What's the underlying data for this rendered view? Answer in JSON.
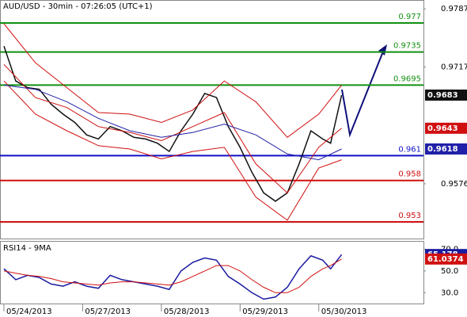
{
  "chart_data": [
    {
      "type": "line",
      "title": "AUD/USD - 30min - 07:26:05 (UTC+1)",
      "xlim": [
        -0.05,
        5.33
      ],
      "ylim": [
        0.9509,
        0.97977
      ],
      "yticks": [
        0.9787,
        0.9717,
        0.9576
      ],
      "levels": [
        {
          "value": 0.977,
          "color": "#129112"
        },
        {
          "value": 0.9735,
          "color": "#129112"
        },
        {
          "value": 0.9695,
          "color": "#129112"
        },
        {
          "value": 0.961,
          "color": "#1010c8"
        },
        {
          "value": 0.958,
          "color": "#d01010"
        },
        {
          "value": 0.953,
          "color": "#d01010"
        }
      ],
      "series": [
        {
          "color": "#111111",
          "x": [
            0,
            0.15,
            0.3,
            0.45,
            0.6,
            0.75,
            0.9,
            1.05,
            1.2,
            1.35,
            1.5,
            1.65,
            1.8,
            1.95,
            2.1,
            2.25,
            2.4,
            2.55,
            2.7,
            2.85,
            3.0,
            3.15,
            3.3,
            3.45,
            3.6,
            3.75,
            3.9,
            4.05,
            4.15,
            4.29
          ],
          "values": [
            0.9742,
            0.97,
            0.9692,
            0.969,
            0.9672,
            0.966,
            0.965,
            0.9635,
            0.963,
            0.9645,
            0.964,
            0.9632,
            0.963,
            0.9625,
            0.9615,
            0.964,
            0.966,
            0.9685,
            0.968,
            0.9645,
            0.962,
            0.959,
            0.9565,
            0.9555,
            0.9565,
            0.96,
            0.964,
            0.963,
            0.9625,
            0.9683
          ]
        },
        {
          "color": "#d01010",
          "x": [
            0,
            0.4,
            0.8,
            1.2,
            1.6,
            2.0,
            2.4,
            2.8,
            3.2,
            3.6,
            4.0,
            4.29
          ],
          "values": [
            0.9769,
            0.9722,
            0.9692,
            0.9662,
            0.966,
            0.965,
            0.9665,
            0.97,
            0.9675,
            0.9632,
            0.966,
            0.9695
          ]
        },
        {
          "color": "#d01010",
          "x": [
            0,
            0.4,
            0.8,
            1.2,
            1.6,
            2.0,
            2.4,
            2.8,
            3.2,
            3.6,
            4.0,
            4.29
          ],
          "values": [
            0.97,
            0.966,
            0.964,
            0.9622,
            0.9618,
            0.9606,
            0.9615,
            0.962,
            0.956,
            0.9532,
            0.9595,
            0.9605
          ]
        },
        {
          "color": "#d01010",
          "x": [
            0,
            0.4,
            0.8,
            1.2,
            1.6,
            2.0,
            2.4,
            2.8,
            3.2,
            3.6,
            4.0,
            4.29
          ],
          "values": [
            0.972,
            0.968,
            0.9668,
            0.9645,
            0.9638,
            0.9628,
            0.9645,
            0.9662,
            0.96,
            0.9565,
            0.962,
            0.9643
          ]
        },
        {
          "color": "#2020a8",
          "x": [
            0,
            0.4,
            0.8,
            1.2,
            1.6,
            2.0,
            2.4,
            2.8,
            3.2,
            3.6,
            4.0,
            4.29
          ],
          "values": [
            0.9695,
            0.969,
            0.9675,
            0.9655,
            0.964,
            0.9632,
            0.9638,
            0.9648,
            0.9635,
            0.9612,
            0.9605,
            0.9618
          ]
        }
      ]
    },
    {
      "type": "line",
      "title": "RSI14 - 9MA",
      "xlim": [
        -0.05,
        5.33
      ],
      "ylim": [
        20,
        77
      ],
      "xticks": [
        {
          "value": 0,
          "label": "05/24/2013"
        },
        {
          "value": 1,
          "label": "05/27/2013"
        },
        {
          "value": 2,
          "label": "05/28/2013"
        },
        {
          "value": 3,
          "label": "05/29/2013"
        },
        {
          "value": 4,
          "label": "05/30/2013"
        }
      ],
      "yticks": [
        {
          "value": 70,
          "label": "70.0"
        },
        {
          "value": 50,
          "label": "50.0"
        },
        {
          "value": 30,
          "label": "30.0"
        }
      ],
      "series": [
        {
          "color": "#1a1aa0",
          "x": [
            0,
            0.15,
            0.3,
            0.45,
            0.6,
            0.75,
            0.9,
            1.05,
            1.2,
            1.35,
            1.5,
            1.65,
            1.8,
            1.95,
            2.1,
            2.25,
            2.4,
            2.55,
            2.7,
            2.85,
            3.0,
            3.15,
            3.3,
            3.45,
            3.6,
            3.75,
            3.9,
            4.05,
            4.15,
            4.29
          ],
          "values": [
            52,
            42,
            46,
            44,
            38,
            36,
            40,
            36,
            34,
            46,
            42,
            40,
            38,
            36,
            33,
            50,
            58,
            62,
            60,
            45,
            38,
            30,
            24,
            26,
            35,
            52,
            64,
            60,
            52,
            65.178
          ]
        },
        {
          "color": "#d01010",
          "x": [
            0,
            0.15,
            0.3,
            0.45,
            0.6,
            0.75,
            0.9,
            1.05,
            1.2,
            1.35,
            1.5,
            1.65,
            1.8,
            1.95,
            2.1,
            2.25,
            2.4,
            2.55,
            2.7,
            2.85,
            3.0,
            3.15,
            3.3,
            3.45,
            3.6,
            3.75,
            3.9,
            4.05,
            4.15,
            4.29
          ],
          "values": [
            50,
            48,
            46,
            45,
            43,
            40,
            39,
            38,
            37,
            39,
            40,
            40,
            39,
            38,
            37,
            40,
            45,
            50,
            55,
            55,
            50,
            42,
            35,
            30,
            30,
            35,
            45,
            52,
            55,
            61.0374
          ]
        }
      ]
    }
  ]
}
